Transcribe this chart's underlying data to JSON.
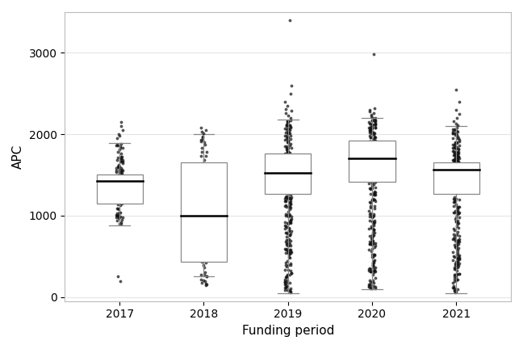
{
  "years": [
    "2017",
    "2018",
    "2019",
    "2020",
    "2021"
  ],
  "box_stats": [
    {
      "year": "2017",
      "q1": 1150,
      "median": 1430,
      "q3": 1510,
      "whislo": 880,
      "whishi": 1890,
      "n_inliers": 80,
      "inlier_range": [
        880,
        1890
      ],
      "fliers_lo": [
        200,
        250
      ],
      "fliers_hi": [
        1950,
        1980,
        2000,
        2050,
        2100,
        2150
      ]
    },
    {
      "year": "2018",
      "q1": 430,
      "median": 1000,
      "q3": 1650,
      "whislo": 250,
      "whishi": 2000,
      "n_inliers": 40,
      "inlier_range": [
        250,
        2000
      ],
      "fliers_lo": [
        150,
        160,
        170,
        180,
        200,
        210,
        220
      ],
      "fliers_hi": [
        2010,
        2030,
        2050,
        2080
      ]
    },
    {
      "year": "2019",
      "q1": 1270,
      "median": 1530,
      "q3": 1760,
      "whislo": 50,
      "whishi": 2180,
      "n_inliers": 200,
      "inlier_range": [
        50,
        2180
      ],
      "fliers_lo": [],
      "fliers_hi": [
        2200,
        2230,
        2260,
        2290,
        2310,
        2350,
        2400,
        2500,
        2600,
        3400
      ]
    },
    {
      "year": "2020",
      "q1": 1420,
      "median": 1700,
      "q3": 1920,
      "whislo": 100,
      "whishi": 2200,
      "n_inliers": 200,
      "inlier_range": [
        100,
        2200
      ],
      "fliers_lo": [],
      "fliers_hi": [
        2220,
        2240,
        2260,
        2280,
        2300,
        2320,
        2980
      ]
    },
    {
      "year": "2021",
      "q1": 1270,
      "median": 1560,
      "q3": 1650,
      "whislo": 50,
      "whishi": 2100,
      "n_inliers": 200,
      "inlier_range": [
        50,
        2100
      ],
      "fliers_lo": [],
      "fliers_hi": [
        2110,
        2130,
        2160,
        2200,
        2250,
        2300,
        2400,
        2550
      ]
    }
  ],
  "xlabel": "Funding period",
  "ylabel": "APC",
  "ylim": [
    -50,
    3500
  ],
  "yticks": [
    0,
    1000,
    2000,
    3000
  ],
  "background_color": "#ffffff",
  "grid_color": "#e5e5e5",
  "box_edge_color": "#888888",
  "median_color": "#000000",
  "flier_color": "#111111",
  "box_width": 0.55,
  "flier_size": 1.8,
  "point_alpha": 0.6
}
